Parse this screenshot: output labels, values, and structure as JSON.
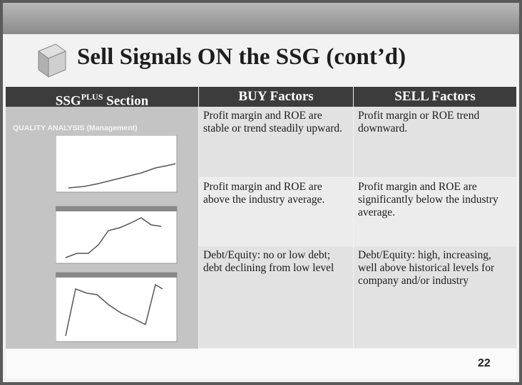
{
  "title": "Sell Signals ON the SSG (cont’d)",
  "table": {
    "header": [
      {
        "base": "SSG",
        "sup": "PLUS",
        "rest": "Section"
      },
      "BUY Factors",
      "SELL Factors"
    ],
    "section_label": "QUALITY ANALYSIS (Management)",
    "rows": [
      [
        "Profit margin and ROE are stable or trend steadily upward.",
        "Profit margin or ROE trend downward."
      ],
      [
        "Profit margin and ROE are above the industry average.",
        "Profit margin and ROE are significantly below the industry average."
      ],
      [
        "Debt/Equity:  no or low debt; debt declining from low level",
        "Debt/Equity:  high, increasing, well above historical levels for company and/or industry"
      ]
    ]
  },
  "page_number": "22"
}
